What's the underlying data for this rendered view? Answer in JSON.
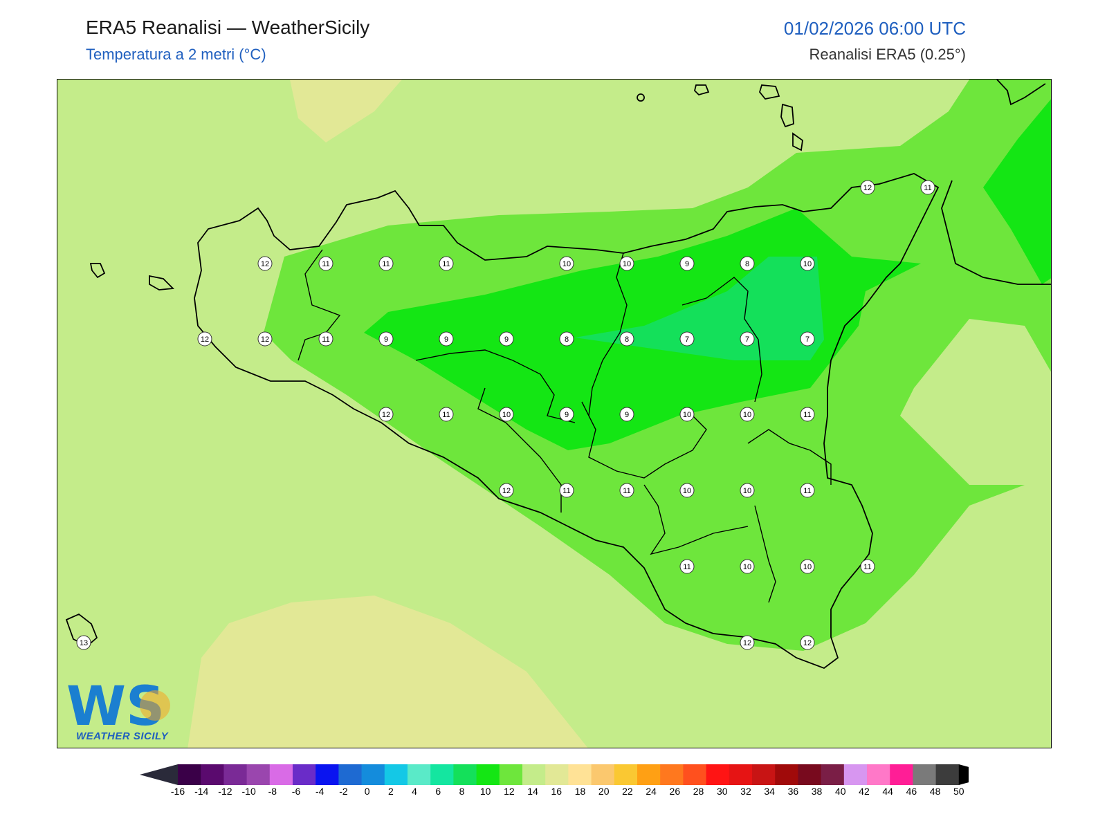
{
  "header": {
    "title": "ERA5 Reanalisi — WeatherSicily",
    "subtitle": "Temperatura a 2 metri (°C)",
    "datetime": "01/02/2026 06:00 UTC",
    "source": "Reanalisi ERA5 (0.25°)"
  },
  "logo": {
    "monogram": "WS",
    "text": "WEATHER SICILY"
  },
  "map": {
    "variable": "2m temperature",
    "units": "°C",
    "station_values": [
      [
        12,
        11,
        11,
        11,
        10,
        10,
        9,
        8,
        10
      ],
      [
        12,
        12,
        11,
        9,
        9,
        9,
        8,
        8,
        7,
        7,
        7
      ],
      [
        12,
        11,
        10,
        9,
        9,
        10,
        10,
        11
      ],
      [
        12,
        11,
        11,
        10,
        10,
        11
      ],
      [
        11,
        10,
        10,
        11
      ],
      [
        12,
        12
      ],
      [
        12,
        11
      ],
      [
        13
      ]
    ]
  },
  "colorbar": {
    "ticks": [
      "-16",
      "-14",
      "-12",
      "-10",
      "-8",
      "-6",
      "-4",
      "-2",
      "0",
      "2",
      "4",
      "6",
      "8",
      "10",
      "12",
      "14",
      "16",
      "18",
      "20",
      "22",
      "24",
      "26",
      "28",
      "30",
      "32",
      "34",
      "36",
      "38",
      "40",
      "42",
      "44",
      "46",
      "48",
      "50"
    ],
    "colors": [
      "#3a0048",
      "#5a0a6e",
      "#7a2a96",
      "#9a46ae",
      "#d96be6",
      "#6a2cc8",
      "#0a14f0",
      "#1e6ad2",
      "#148cdc",
      "#14c8e6",
      "#5aeac8",
      "#14e6a0",
      "#14e05a",
      "#14e614",
      "#6ee63c",
      "#c4ec8a",
      "#e2e896",
      "#ffe296",
      "#fbc86e",
      "#fac832",
      "#ffa014",
      "#ff781e",
      "#ff501e",
      "#ff1414",
      "#e61414",
      "#c81414",
      "#a00a0a",
      "#780a1e",
      "#7a1e46",
      "#d796f0",
      "#ff78c8",
      "#ff1e96",
      "#7a7a7a",
      "#3c3c3c"
    ]
  }
}
